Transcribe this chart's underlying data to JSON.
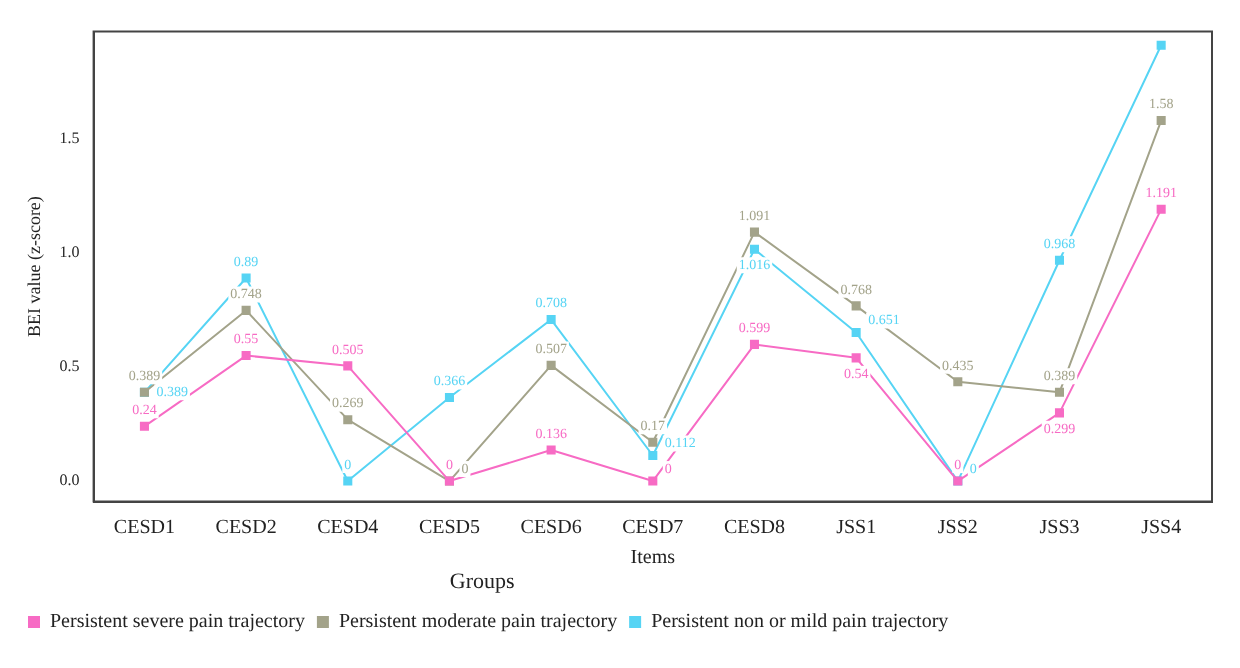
{
  "chart_data": {
    "type": "line",
    "xlabel": "Items",
    "ylabel": "BEI value (z-score)",
    "legend_title": "Groups",
    "legend": "bottom left",
    "marker": "square",
    "grid": false,
    "categories": [
      "CESD1",
      "CESD2",
      "CESD4",
      "CESD5",
      "CESD6",
      "CESD7",
      "CESD8",
      "JSS1",
      "JSS2",
      "JSS3",
      "JSS4"
    ],
    "ylim": [
      -0.09,
      1.97
    ],
    "yticks": [
      {
        "value": 0,
        "label": "0.0"
      },
      {
        "value": 0.5,
        "label": "0.5"
      },
      {
        "value": 1,
        "label": "1.0"
      },
      {
        "value": 1.5,
        "label": "1.5"
      }
    ],
    "series": [
      {
        "name": "Persistent severe pain trajectory",
        "color": "#f76bc4",
        "values": [
          0.24,
          0.55,
          0.505,
          0,
          0.136,
          0,
          0.599,
          0.54,
          0,
          0.299,
          1.191
        ],
        "value_labels": [
          "0.24",
          "0.55",
          "0.505",
          "0",
          "0.136",
          "0",
          "0.599",
          "0.54",
          "0",
          "0.299",
          "1.191"
        ]
      },
      {
        "name": "Persistent moderate pain trajectory",
        "color": "#a3a38a",
        "values": [
          0.389,
          0.748,
          0.269,
          0,
          0.507,
          0.17,
          1.091,
          0.768,
          0.435,
          0.389,
          1.58
        ],
        "value_labels": [
          "0.389",
          "0.748",
          "0.269",
          "0",
          "0.507",
          "0.17",
          "1.091",
          "0.768",
          "0.435",
          "0.389",
          "1.58"
        ]
      },
      {
        "name": "Persistent non or mild pain trajectory",
        "color": "#56d4f4",
        "values": [
          0.389,
          0.89,
          0,
          0.366,
          0.708,
          0.112,
          1.016,
          0.651,
          0,
          0.968,
          1.91
        ],
        "value_labels": [
          "0.389",
          "0.89",
          "0",
          "0.366",
          "0.708",
          "0.112",
          "1.016",
          "0.651",
          "0",
          "0.968",
          null
        ]
      }
    ]
  }
}
